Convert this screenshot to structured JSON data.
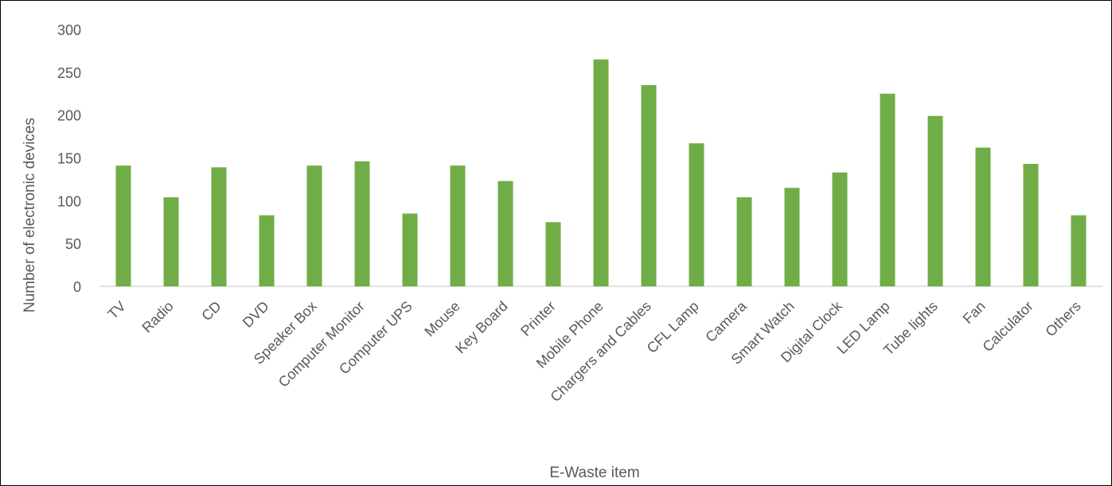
{
  "chart_data": {
    "type": "bar",
    "xlabel": "E-Waste item",
    "ylabel": "Number of electronic devices",
    "ylim": [
      0,
      300
    ],
    "yticks": [
      0,
      50,
      100,
      150,
      200,
      250,
      300
    ],
    "grid": false,
    "legend": "none",
    "bar_color": "#70AD47",
    "categories": [
      "TV",
      "Radio",
      "CD",
      "DVD",
      "Speaker Box",
      "Computer Monitor",
      "Computer UPS",
      "Mouse",
      "Key Board",
      "Printer",
      "Mobile Phone",
      "Chargers and Cables",
      "CFL Lamp",
      "Camera",
      "Smart Watch",
      "Digital Clock",
      "LED Lamp",
      "Tube lights",
      "Fan",
      "Calculator",
      "Others"
    ],
    "values": [
      141,
      104,
      139,
      83,
      141,
      146,
      85,
      141,
      123,
      75,
      265,
      235,
      167,
      104,
      115,
      133,
      225,
      199,
      162,
      143,
      83
    ]
  }
}
